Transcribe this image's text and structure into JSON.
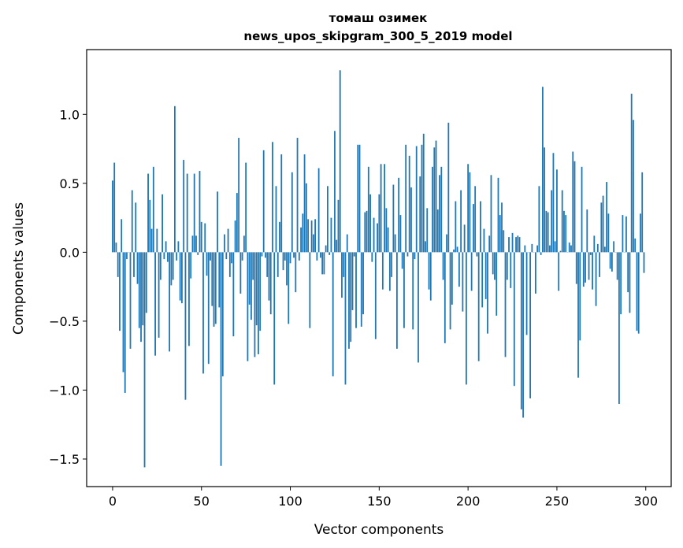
{
  "chart_data": {
    "type": "bar",
    "title": [
      "томаш озимек",
      "news_upos_skipgram_300_5_2019 model"
    ],
    "xlabel": "Vector components",
    "ylabel": "Components values",
    "xlim": [
      -14.6,
      314.3
    ],
    "ylim": [
      -1.7,
      1.47
    ],
    "xticks": [
      0,
      50,
      100,
      150,
      200,
      250,
      300
    ],
    "xtick_labels": [
      "0",
      "50",
      "100",
      "150",
      "200",
      "250",
      "300"
    ],
    "yticks": [
      -1.5,
      -1.0,
      -0.5,
      0.0,
      0.5,
      1.0
    ],
    "ytick_labels": [
      "−1.5",
      "−1.0",
      "−0.5",
      "0.0",
      "0.5",
      "1.0"
    ],
    "grid": false,
    "bar_color": "#1f77b4",
    "values": [
      0.52,
      0.65,
      0.07,
      -0.18,
      -0.57,
      0.24,
      -0.87,
      -1.02,
      -0.05,
      0.0,
      -0.7,
      0.45,
      -0.18,
      0.36,
      -0.23,
      -0.55,
      -0.65,
      -0.53,
      -1.56,
      -0.44,
      0.57,
      0.38,
      0.17,
      0.62,
      -0.75,
      0.17,
      -0.62,
      -0.2,
      0.42,
      -0.05,
      0.08,
      -0.07,
      -0.72,
      -0.24,
      -0.2,
      1.06,
      -0.06,
      0.08,
      -0.35,
      -0.37,
      0.67,
      -1.07,
      0.57,
      -0.68,
      -0.19,
      0.12,
      0.57,
      0.12,
      -0.02,
      0.59,
      0.22,
      -0.88,
      0.21,
      -0.17,
      -0.81,
      -0.06,
      -0.39,
      -0.54,
      -0.52,
      0.44,
      -0.4,
      -1.55,
      -0.9,
      0.13,
      -0.05,
      0.17,
      -0.18,
      -0.08,
      -0.61,
      0.23,
      0.43,
      0.83,
      -0.3,
      -0.06,
      0.12,
      0.65,
      -0.79,
      -0.38,
      -0.49,
      -0.2,
      -0.76,
      -0.53,
      -0.74,
      -0.57,
      -0.03,
      0.74,
      -0.04,
      -0.18,
      -0.35,
      -0.45,
      0.8,
      -0.96,
      0.48,
      -0.18,
      0.22,
      0.71,
      -0.13,
      -0.06,
      -0.24,
      -0.52,
      -0.08,
      0.58,
      -0.04,
      -0.29,
      0.83,
      -0.06,
      0.18,
      0.28,
      0.71,
      0.5,
      0.24,
      -0.55,
      0.23,
      0.13,
      0.24,
      -0.06,
      0.61,
      -0.04,
      -0.16,
      -0.16,
      0.05,
      0.48,
      -0.02,
      0.25,
      -0.9,
      0.88,
      0.09,
      0.38,
      1.32,
      -0.33,
      -0.18,
      -0.96,
      0.13,
      -0.7,
      -0.65,
      -0.42,
      -0.03,
      -0.55,
      0.78,
      0.78,
      -0.54,
      -0.45,
      0.29,
      0.3,
      0.62,
      0.42,
      -0.07,
      0.25,
      -0.63,
      0.21,
      0.42,
      0.64,
      -0.27,
      0.64,
      0.32,
      0.18,
      -0.28,
      -0.18,
      0.49,
      0.13,
      -0.7,
      0.54,
      0.27,
      -0.12,
      -0.55,
      0.78,
      -0.03,
      0.7,
      0.47,
      -0.56,
      -0.05,
      0.77,
      -0.8,
      0.55,
      0.78,
      0.86,
      0.08,
      0.32,
      -0.27,
      -0.35,
      0.62,
      0.76,
      0.81,
      0.31,
      0.56,
      0.62,
      -0.2,
      -0.66,
      0.13,
      0.94,
      -0.56,
      -0.38,
      0.02,
      0.37,
      0.04,
      -0.25,
      0.45,
      -0.43,
      0.2,
      -0.96,
      0.64,
      0.58,
      -0.28,
      0.35,
      0.48,
      -0.03,
      -0.79,
      0.37,
      -0.4,
      0.17,
      -0.34,
      -0.59,
      0.12,
      0.56,
      -0.16,
      -0.2,
      -0.46,
      0.54,
      0.27,
      0.36,
      0.16,
      -0.76,
      -0.2,
      0.11,
      -0.26,
      0.14,
      -0.97,
      0.11,
      0.12,
      0.11,
      -1.14,
      -1.2,
      0.05,
      -0.6,
      0.0,
      -1.06,
      0.06,
      0.0,
      -0.3,
      0.05,
      0.48,
      -0.02,
      1.2,
      0.76,
      0.3,
      0.29,
      0.05,
      0.45,
      0.72,
      0.08,
      0.6,
      -0.28,
      0.01,
      0.45,
      0.3,
      0.27,
      0.0,
      0.07,
      0.05,
      0.73,
      0.66,
      -0.23,
      -0.91,
      -0.64,
      0.62,
      -0.25,
      -0.22,
      0.31,
      -0.2,
      -0.02,
      -0.27,
      0.12,
      -0.39,
      0.06,
      -0.18,
      0.36,
      0.41,
      0.04,
      0.51,
      0.28,
      -0.12,
      -0.14,
      0.08,
      0.0,
      -0.2,
      -1.1,
      -0.45,
      0.27,
      0.0,
      0.26,
      -0.29,
      -0.44,
      1.15,
      0.96,
      0.1,
      -0.57,
      -0.59,
      0.28,
      0.58,
      -0.15
    ]
  }
}
